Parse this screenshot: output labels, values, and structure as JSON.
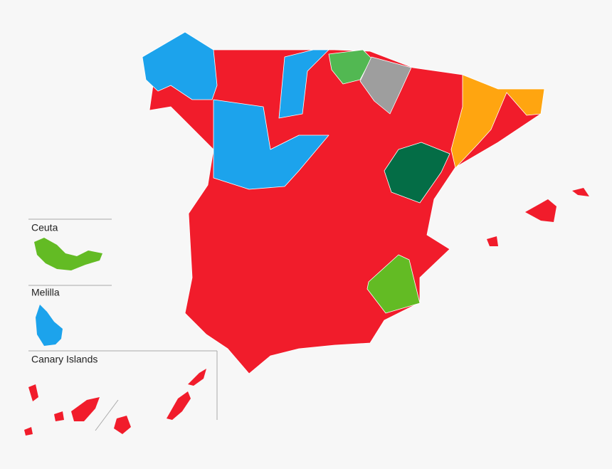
{
  "insets": [
    {
      "label": "Ceuta"
    },
    {
      "label": "Melilla"
    },
    {
      "label": "Canary Islands"
    }
  ]
}
